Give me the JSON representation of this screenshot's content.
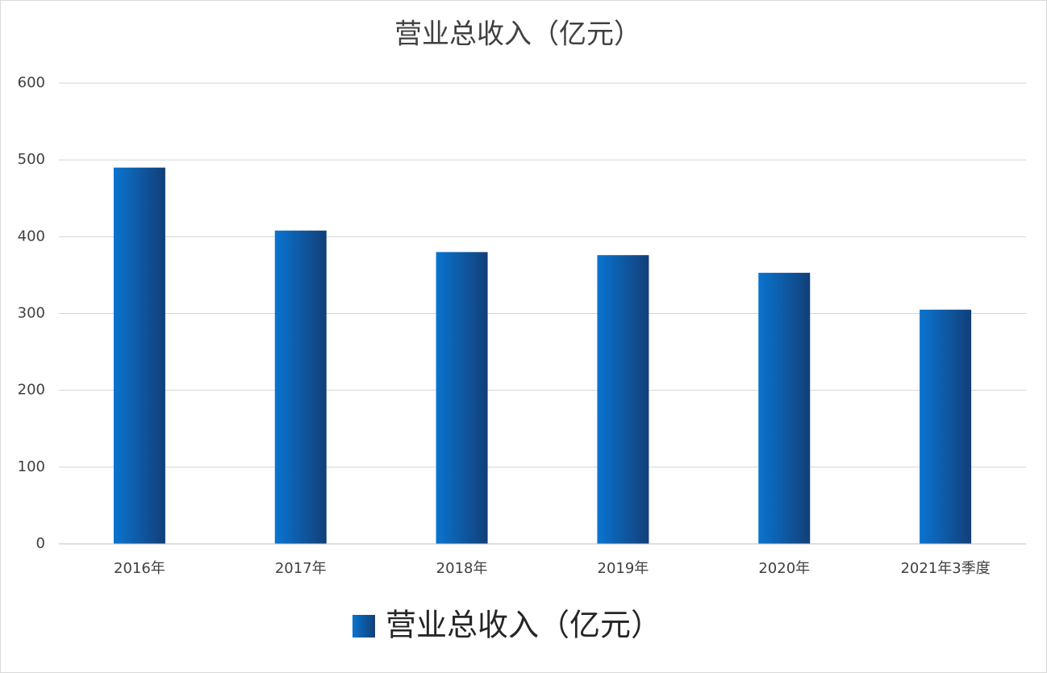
{
  "chart_data": {
    "type": "bar",
    "title": "营业总收入（亿元）",
    "categories": [
      "2016年",
      "2017年",
      "2018年",
      "2019年",
      "2020年",
      "2021年3季度"
    ],
    "series": [
      {
        "name": "营业总收入（亿元）",
        "color": "#0a74d0",
        "values": [
          490,
          408,
          380,
          376,
          353,
          305
        ]
      }
    ],
    "ylim": [
      0,
      600
    ],
    "yticks": [
      0,
      100,
      200,
      300,
      400,
      500,
      600
    ],
    "grid": true,
    "legend": "bottom"
  }
}
